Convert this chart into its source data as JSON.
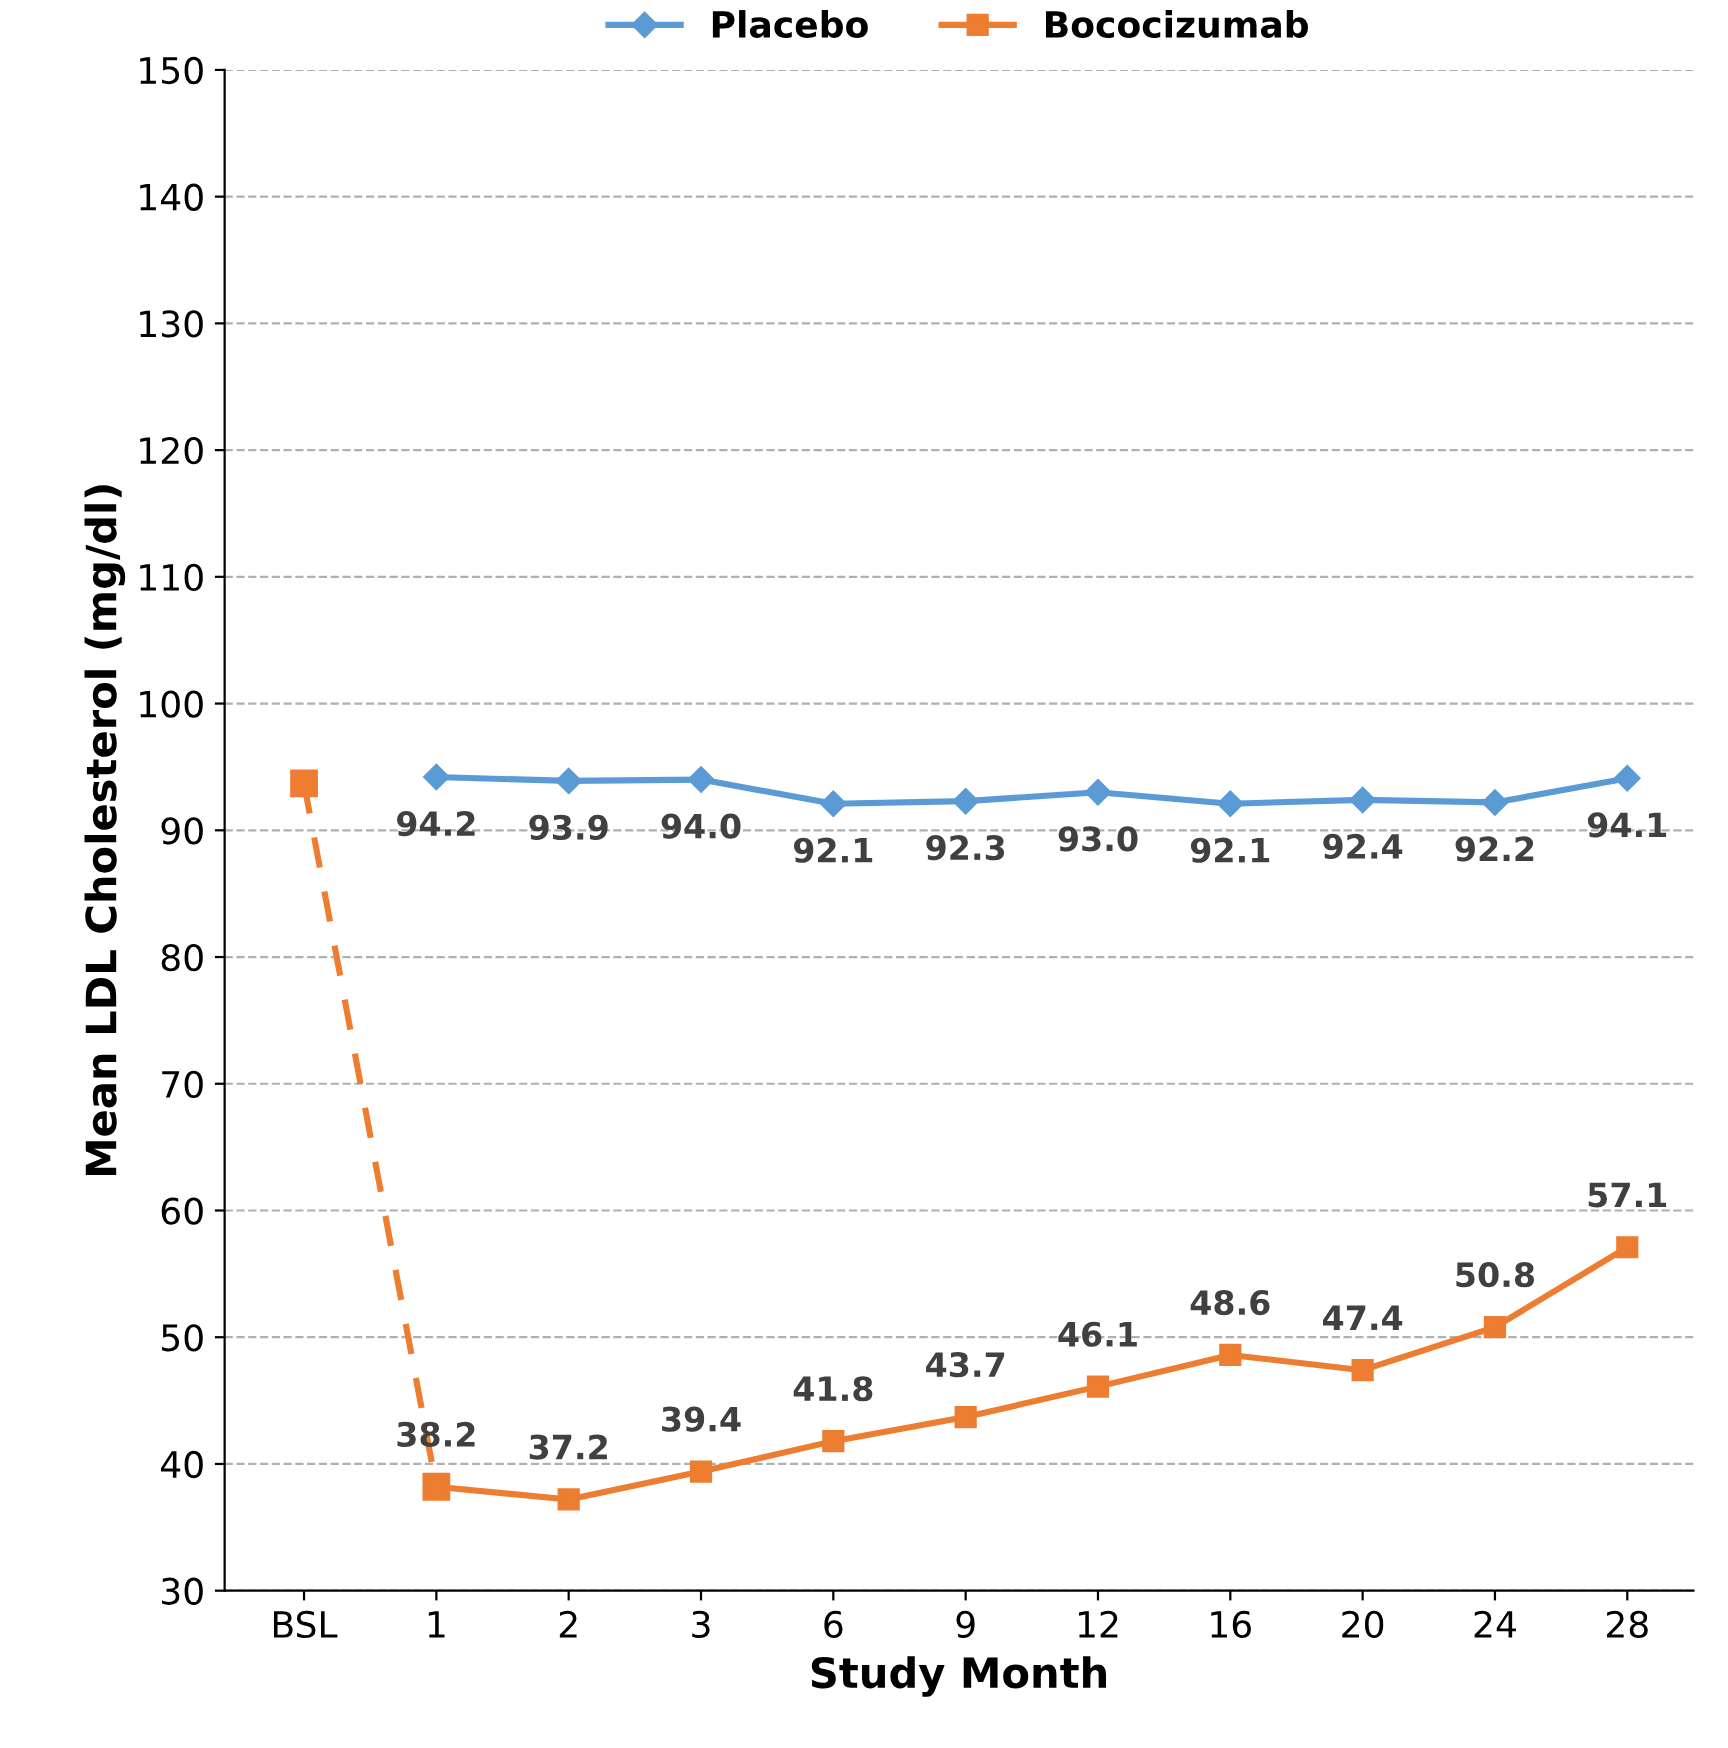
{
  "chart_data": {
    "type": "line",
    "xlabel": "Study Month",
    "ylabel": "Mean LDL Cholesterol (mg/dl)",
    "categories": [
      "BSL",
      "1",
      "2",
      "3",
      "6",
      "9",
      "12",
      "16",
      "20",
      "24",
      "28"
    ],
    "ylim": [
      30,
      150
    ],
    "yticks": [
      30,
      40,
      50,
      60,
      70,
      80,
      90,
      100,
      110,
      120,
      130,
      140,
      150
    ],
    "grid": "y",
    "legend": "top",
    "series": [
      {
        "name": "Placebo",
        "color": "#5b9bd5",
        "marker": "diamond",
        "line_style": "solid",
        "values": [
          null,
          94.2,
          93.9,
          94.0,
          92.1,
          92.3,
          93.0,
          92.1,
          92.4,
          92.2,
          94.1
        ],
        "value_labels": [
          null,
          "94.2",
          "93.9",
          "94.0",
          "92.1",
          "92.3",
          "93.0",
          "92.1",
          "92.4",
          "92.2",
          "94.1"
        ]
      },
      {
        "color": "#ed7d31",
        "marker": "square",
        "line_style": "dashed",
        "values": [
          93.7,
          38.2,
          null,
          null,
          null,
          null,
          null,
          null,
          null,
          null,
          null
        ]
      },
      {
        "name": "Bococizumab",
        "color": "#ed7d31",
        "marker": "square",
        "line_style": "solid",
        "values": [
          null,
          38.2,
          37.2,
          39.4,
          41.8,
          43.7,
          46.1,
          48.6,
          47.4,
          50.8,
          57.1
        ],
        "value_labels": [
          null,
          "38.2",
          "37.2",
          "39.4",
          "41.8",
          "43.7",
          "46.1",
          "48.6",
          "47.4",
          "50.8",
          "57.1"
        ]
      }
    ]
  }
}
